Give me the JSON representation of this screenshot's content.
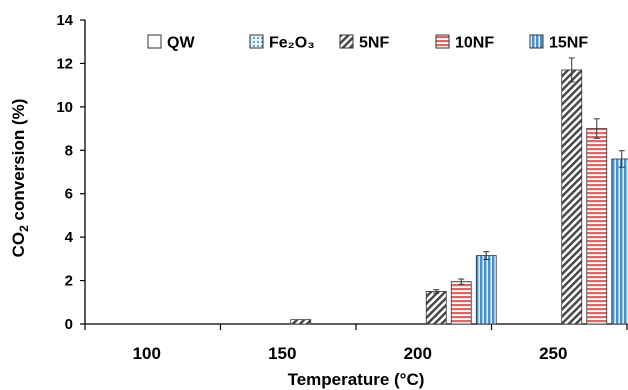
{
  "chart_data": {
    "type": "bar",
    "xlabel": "Temperature (°C)",
    "ylabel": "CO2 conversion (%)",
    "ylim": [
      0,
      14
    ],
    "yticks": [
      0,
      2,
      4,
      6,
      8,
      10,
      12,
      14
    ],
    "categories": [
      "100",
      "150",
      "200",
      "250"
    ],
    "legend_position": "top",
    "grid": false,
    "series": [
      {
        "name": "QW",
        "color": "#ffffff",
        "pattern": "none",
        "values": [
          0,
          0,
          0,
          0
        ],
        "errors": [
          0,
          0,
          0,
          0
        ]
      },
      {
        "name": "Fe₂O₃",
        "color": "#6fb6e8",
        "pattern": "dots",
        "values": [
          0,
          0,
          0,
          0
        ],
        "errors": [
          0,
          0,
          0,
          0
        ]
      },
      {
        "name": "5NF",
        "color": "#8c8c8c",
        "pattern": "diagonal",
        "values": [
          0,
          0.2,
          1.5,
          11.7
        ],
        "errors": [
          0,
          0,
          0.08,
          0.55
        ]
      },
      {
        "name": "10NF",
        "color": "#e06666",
        "pattern": "horizontal",
        "values": [
          0,
          0,
          1.95,
          9.0
        ],
        "errors": [
          0,
          0,
          0.12,
          0.45
        ]
      },
      {
        "name": "15NF",
        "color": "#5b9bd5",
        "pattern": "vertical",
        "values": [
          0,
          0,
          3.15,
          7.6
        ],
        "errors": [
          0,
          0,
          0.18,
          0.38
        ]
      }
    ]
  }
}
